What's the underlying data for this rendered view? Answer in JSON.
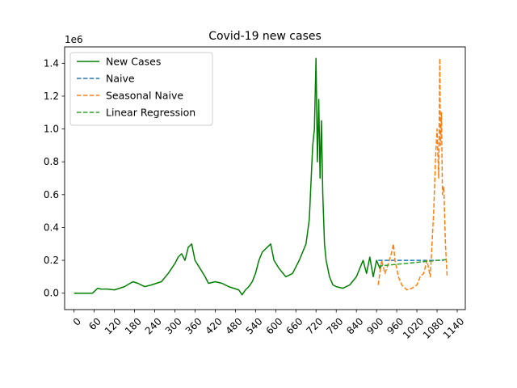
{
  "chart_data": {
    "type": "line",
    "title": "Covid-19 new cases",
    "xlabel": "",
    "ylabel": "",
    "y_offset_label": "1e6",
    "xlim": [
      -28,
      1164
    ],
    "ylim": [
      -0.1,
      1.5
    ],
    "x_ticks": [
      0,
      60,
      120,
      180,
      240,
      300,
      360,
      420,
      480,
      540,
      600,
      660,
      720,
      780,
      840,
      900,
      960,
      1020,
      1080,
      1140
    ],
    "x_tick_labels": [
      "0",
      "60",
      "120",
      "180",
      "240",
      "300",
      "360",
      "420",
      "480",
      "540",
      "600",
      "660",
      "720",
      "780",
      "840",
      "900",
      "960",
      "1020",
      "1080",
      "1140"
    ],
    "y_ticks": [
      0.0,
      0.2,
      0.4,
      0.6,
      0.8,
      1.0,
      1.2,
      1.4
    ],
    "y_tick_labels": [
      "0.0",
      "0.2",
      "0.4",
      "0.6",
      "0.8",
      "1.0",
      "1.2",
      "1.4"
    ],
    "legend_position": "top-left",
    "grid": false,
    "series": [
      {
        "name": "New Cases",
        "color": "#008000",
        "style": "solid",
        "x": [
          0,
          55,
          60,
          70,
          80,
          100,
          120,
          150,
          175,
          190,
          210,
          230,
          260,
          280,
          300,
          310,
          320,
          330,
          340,
          350,
          360,
          375,
          390,
          400,
          420,
          440,
          460,
          490,
          500,
          510,
          520,
          530,
          540,
          550,
          560,
          575,
          585,
          595,
          610,
          630,
          650,
          670,
          690,
          700,
          710,
          715,
          720,
          724,
          728,
          732,
          736,
          740,
          745,
          750,
          760,
          770,
          780,
          800,
          820,
          840,
          850,
          860,
          870,
          880,
          890,
          900,
          910,
          915
        ],
        "y": [
          0.0,
          0.0,
          0.01,
          0.03,
          0.025,
          0.025,
          0.02,
          0.04,
          0.07,
          0.06,
          0.04,
          0.05,
          0.07,
          0.12,
          0.18,
          0.22,
          0.24,
          0.2,
          0.28,
          0.3,
          0.2,
          0.15,
          0.1,
          0.06,
          0.07,
          0.06,
          0.04,
          0.02,
          -0.01,
          0.02,
          0.04,
          0.07,
          0.12,
          0.2,
          0.25,
          0.28,
          0.3,
          0.2,
          0.15,
          0.1,
          0.12,
          0.2,
          0.3,
          0.45,
          0.9,
          1.0,
          1.43,
          0.8,
          1.18,
          0.7,
          1.05,
          0.6,
          0.3,
          0.2,
          0.1,
          0.05,
          0.04,
          0.03,
          0.05,
          0.1,
          0.15,
          0.2,
          0.12,
          0.22,
          0.1,
          0.2,
          0.15,
          0.17
        ]
      },
      {
        "name": "Naive",
        "color": "#1f77b4",
        "style": "dashed",
        "x": [
          905,
          1100
        ],
        "y": [
          0.2,
          0.2
        ]
      },
      {
        "name": "Seasonal Naive",
        "color": "#ff7f0e",
        "style": "dashed",
        "x": [
          905,
          915,
          925,
          935,
          945,
          950,
          955,
          960,
          965,
          975,
          990,
          1005,
          1020,
          1030,
          1040,
          1050,
          1060,
          1065,
          1070,
          1075,
          1080,
          1085,
          1088,
          1090,
          1093,
          1096,
          1100,
          1105,
          1110
        ],
        "y": [
          0.05,
          0.2,
          0.12,
          0.18,
          0.25,
          0.3,
          0.2,
          0.15,
          0.1,
          0.05,
          0.02,
          0.03,
          0.05,
          0.1,
          0.12,
          0.2,
          0.1,
          0.3,
          0.5,
          0.8,
          1.0,
          0.7,
          1.43,
          0.9,
          1.1,
          0.6,
          0.65,
          0.3,
          0.1
        ]
      },
      {
        "name": "Linear Regression",
        "color": "#2ca02c",
        "style": "dashed",
        "x": [
          905,
          1110
        ],
        "y": [
          0.165,
          0.205
        ]
      }
    ]
  }
}
